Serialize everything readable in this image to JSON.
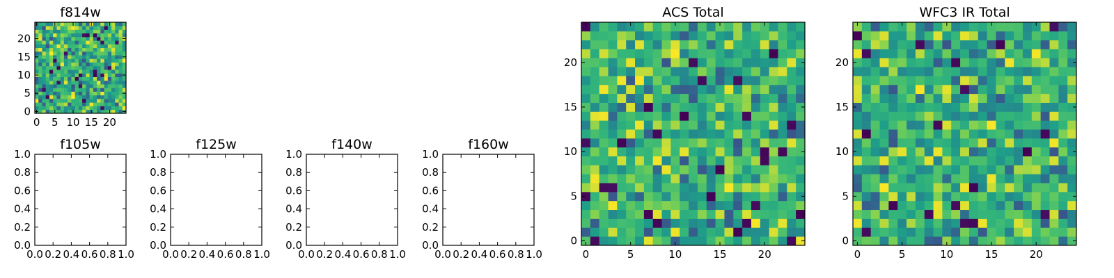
{
  "colors": {
    "background": "#ffffff",
    "axes": "#000000",
    "colormap": "viridis"
  },
  "chart_data": [
    {
      "type": "heatmap",
      "title": "f814w",
      "grid_size": 25,
      "xticks": [
        "0",
        "5",
        "10",
        "15",
        "20"
      ],
      "yticks": [
        "0",
        "5",
        "10",
        "15",
        "20"
      ],
      "xlim": [
        -0.5,
        24.5
      ],
      "ylim": [
        -0.5,
        24.5
      ],
      "colormap": "viridis",
      "seed": 11
    },
    {
      "type": "heatmap",
      "title": "f105w",
      "empty": true,
      "xticks": [
        "0.0",
        "0.2",
        "0.4",
        "0.6",
        "0.8",
        "1.0"
      ],
      "yticks": [
        "0.0",
        "0.2",
        "0.4",
        "0.6",
        "0.8",
        "1.0"
      ],
      "xlim": [
        0,
        1
      ],
      "ylim": [
        0,
        1
      ]
    },
    {
      "type": "heatmap",
      "title": "f125w",
      "empty": true,
      "xticks": [
        "0.0",
        "0.2",
        "0.4",
        "0.6",
        "0.8",
        "1.0"
      ],
      "yticks": [
        "0.0",
        "0.2",
        "0.4",
        "0.6",
        "0.8",
        "1.0"
      ],
      "xlim": [
        0,
        1
      ],
      "ylim": [
        0,
        1
      ]
    },
    {
      "type": "heatmap",
      "title": "f140w",
      "empty": true,
      "xticks": [
        "0.0",
        "0.2",
        "0.4",
        "0.6",
        "0.8",
        "1.0"
      ],
      "yticks": [
        "0.0",
        "0.2",
        "0.4",
        "0.6",
        "0.8",
        "1.0"
      ],
      "xlim": [
        0,
        1
      ],
      "ylim": [
        0,
        1
      ]
    },
    {
      "type": "heatmap",
      "title": "f160w",
      "empty": true,
      "xticks": [
        "0.0",
        "0.2",
        "0.4",
        "0.6",
        "0.8",
        "1.0"
      ],
      "yticks": [
        "0.0",
        "0.2",
        "0.4",
        "0.6",
        "0.8",
        "1.0"
      ],
      "xlim": [
        0,
        1
      ],
      "ylim": [
        0,
        1
      ]
    },
    {
      "type": "heatmap",
      "title": "ACS Total",
      "grid_size": 25,
      "xticks": [
        "0",
        "5",
        "10",
        "15",
        "20"
      ],
      "yticks": [
        "0",
        "5",
        "10",
        "15",
        "20"
      ],
      "xlim": [
        -0.5,
        24.5
      ],
      "ylim": [
        -0.5,
        24.5
      ],
      "colormap": "viridis",
      "seed": 37
    },
    {
      "type": "heatmap",
      "title": "WFC3 IR Total",
      "grid_size": 25,
      "xticks": [
        "0",
        "5",
        "10",
        "15",
        "20"
      ],
      "yticks": [
        "0",
        "5",
        "10",
        "15",
        "20"
      ],
      "xlim": [
        -0.5,
        24.5
      ],
      "ylim": [
        -0.5,
        24.5
      ],
      "colormap": "viridis",
      "seed": 73
    }
  ]
}
